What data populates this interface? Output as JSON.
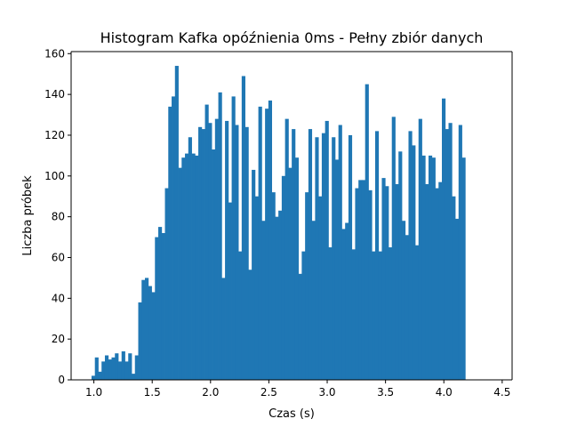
{
  "chart_data": {
    "type": "bar",
    "title": "Histogram Kafka opóźnienia  0ms - Pełny zbiór danych",
    "xlabel": "Czas (s)",
    "ylabel": "Liczba próbek",
    "xlim": [
      0.805,
      4.585
    ],
    "ylim": [
      0,
      161
    ],
    "xticks": [
      1.0,
      1.5,
      2.0,
      2.5,
      3.0,
      3.5,
      4.0,
      4.5
    ],
    "xtick_labels": [
      "1.0",
      "1.5",
      "2.0",
      "2.5",
      "3.0",
      "3.5",
      "4.0",
      "4.5"
    ],
    "yticks": [
      0,
      20,
      40,
      60,
      80,
      100,
      120,
      140,
      160
    ],
    "ytick_labels": [
      "0",
      "20",
      "40",
      "60",
      "80",
      "100",
      "120",
      "140",
      "160"
    ],
    "grid": false,
    "color": "#1f77b4",
    "bin_start": 0.98,
    "bin_width": 0.0286,
    "values": [
      2,
      11,
      4,
      9,
      12,
      10,
      11,
      13,
      9,
      14,
      9,
      13,
      3,
      12,
      38,
      49,
      50,
      46,
      43,
      70,
      75,
      72,
      94,
      134,
      139,
      154,
      104,
      109,
      111,
      119,
      111,
      110,
      124,
      123,
      135,
      126,
      113,
      128,
      141,
      50,
      127,
      87,
      139,
      125,
      63,
      149,
      124,
      54,
      103,
      90,
      134,
      78,
      133,
      137,
      92,
      80,
      83,
      100,
      128,
      104,
      123,
      109,
      52,
      63,
      92,
      123,
      78,
      119,
      90,
      121,
      127,
      65,
      119,
      108,
      125,
      74,
      77,
      120,
      64,
      94,
      98,
      98,
      145,
      93,
      63,
      122,
      63,
      99,
      95,
      65,
      129,
      96,
      112,
      78,
      71,
      122,
      115,
      66,
      128,
      110,
      96,
      110,
      109,
      94,
      97,
      138,
      123,
      126,
      90,
      79,
      125,
      109
    ]
  }
}
